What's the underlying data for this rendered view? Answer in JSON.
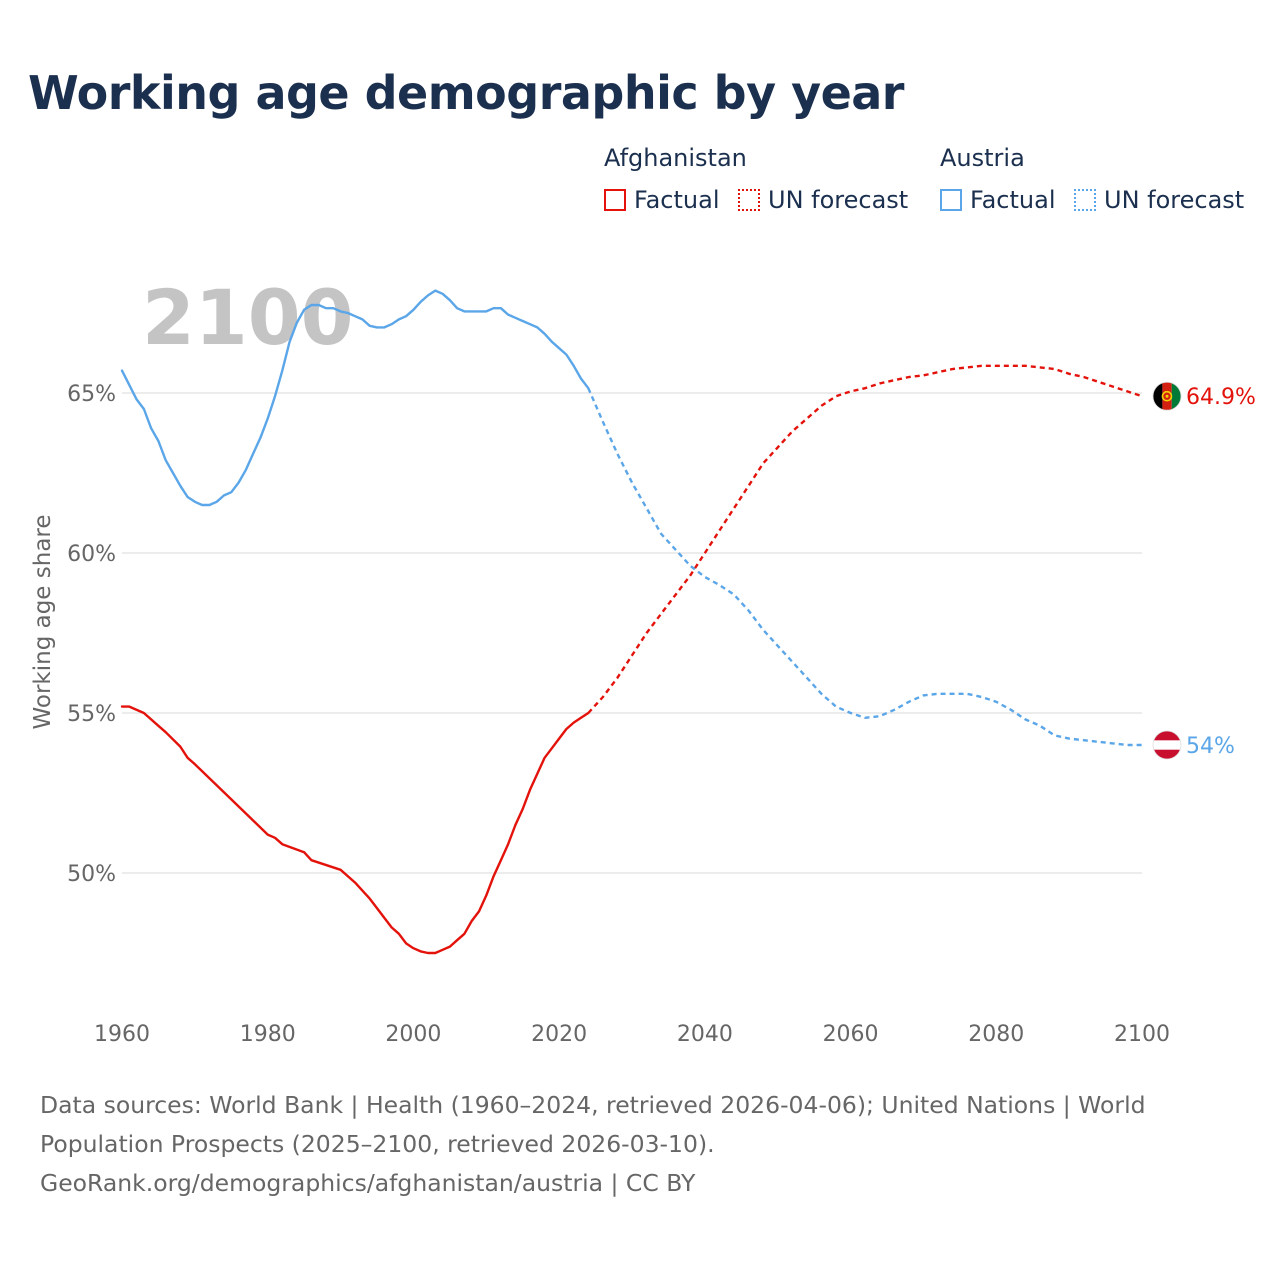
{
  "title": "Working age demographic by year",
  "year_watermark": "2100",
  "legend": {
    "groups": [
      {
        "name": "Afghanistan",
        "color": "#e3120b",
        "factual_label": "Factual",
        "forecast_label": "UN forecast"
      },
      {
        "name": "Austria",
        "color": "#5ba6e8",
        "factual_label": "Factual",
        "forecast_label": "UN forecast"
      }
    ]
  },
  "footer": {
    "line1": "Data sources: World Bank | Health (1960–2024, retrieved 2026-04-06); United Nations | World",
    "line2": "Population Prospects (2025–2100, retrieved 2026-03-10).",
    "line3": "GeoRank.org/demographics/afghanistan/austria | CC BY"
  },
  "chart_data": {
    "type": "line",
    "title": "Working age demographic by year",
    "xlabel": "",
    "ylabel": "Working age share",
    "xlim": [
      1960,
      2100
    ],
    "ylim": [
      46,
      68.5
    ],
    "x_ticks": [
      1960,
      1980,
      2000,
      2020,
      2040,
      2060,
      2080,
      2100
    ],
    "y_ticks": [
      50,
      55,
      60,
      65
    ],
    "y_tick_labels": [
      "50%",
      "55%",
      "60%",
      "65%"
    ],
    "grid": true,
    "forecast_start_year": 2024,
    "series": [
      {
        "name": "Afghanistan",
        "color": "#e3120b",
        "end_label": "64.9%",
        "points": [
          [
            1960,
            55.2
          ],
          [
            1961,
            55.2
          ],
          [
            1963,
            55.0
          ],
          [
            1965,
            54.6
          ],
          [
            1966,
            54.4
          ],
          [
            1968,
            53.95
          ],
          [
            1969,
            53.6
          ],
          [
            1970,
            53.4
          ],
          [
            1975,
            52.3
          ],
          [
            1980,
            51.2
          ],
          [
            1981,
            51.1
          ],
          [
            1982,
            50.9
          ],
          [
            1985,
            50.65
          ],
          [
            1986,
            50.4
          ],
          [
            1990,
            50.1
          ],
          [
            1992,
            49.7
          ],
          [
            1994,
            49.2
          ],
          [
            1997,
            48.3
          ],
          [
            1998,
            48.1
          ],
          [
            1999,
            47.8
          ],
          [
            2000,
            47.65
          ],
          [
            2001,
            47.55
          ],
          [
            2002,
            47.5
          ],
          [
            2003,
            47.5
          ],
          [
            2004,
            47.6
          ],
          [
            2005,
            47.7
          ],
          [
            2006,
            47.9
          ],
          [
            2007,
            48.1
          ],
          [
            2008,
            48.5
          ],
          [
            2009,
            48.8
          ],
          [
            2010,
            49.3
          ],
          [
            2011,
            49.9
          ],
          [
            2012,
            50.4
          ],
          [
            2013,
            50.9
          ],
          [
            2014,
            51.5
          ],
          [
            2015,
            52.0
          ],
          [
            2016,
            52.6
          ],
          [
            2017,
            53.1
          ],
          [
            2018,
            53.6
          ],
          [
            2019,
            53.9
          ],
          [
            2020,
            54.2
          ],
          [
            2021,
            54.5
          ],
          [
            2022,
            54.7
          ],
          [
            2023,
            54.85
          ],
          [
            2024,
            55.0
          ],
          [
            2026,
            55.5
          ],
          [
            2028,
            56.1
          ],
          [
            2030,
            56.8
          ],
          [
            2032,
            57.5
          ],
          [
            2034,
            58.1
          ],
          [
            2036,
            58.7
          ],
          [
            2038,
            59.3
          ],
          [
            2040,
            60.0
          ],
          [
            2042,
            60.7
          ],
          [
            2044,
            61.4
          ],
          [
            2046,
            62.1
          ],
          [
            2048,
            62.8
          ],
          [
            2050,
            63.3
          ],
          [
            2052,
            63.8
          ],
          [
            2054,
            64.2
          ],
          [
            2056,
            64.6
          ],
          [
            2058,
            64.9
          ],
          [
            2060,
            65.05
          ],
          [
            2062,
            65.15
          ],
          [
            2064,
            65.3
          ],
          [
            2066,
            65.4
          ],
          [
            2068,
            65.5
          ],
          [
            2070,
            65.55
          ],
          [
            2072,
            65.65
          ],
          [
            2074,
            65.75
          ],
          [
            2076,
            65.8
          ],
          [
            2078,
            65.85
          ],
          [
            2080,
            65.85
          ],
          [
            2082,
            65.85
          ],
          [
            2084,
            65.85
          ],
          [
            2086,
            65.8
          ],
          [
            2088,
            65.75
          ],
          [
            2090,
            65.6
          ],
          [
            2092,
            65.5
          ],
          [
            2094,
            65.35
          ],
          [
            2096,
            65.2
          ],
          [
            2098,
            65.05
          ],
          [
            2100,
            64.9
          ]
        ]
      },
      {
        "name": "Austria",
        "color": "#5ba6e8",
        "end_label": "54%",
        "points": [
          [
            1960,
            65.7
          ],
          [
            1962,
            64.8
          ],
          [
            1963,
            64.5
          ],
          [
            1964,
            63.9
          ],
          [
            1965,
            63.5
          ],
          [
            1966,
            62.9
          ],
          [
            1967,
            62.5
          ],
          [
            1968,
            62.1
          ],
          [
            1969,
            61.75
          ],
          [
            1970,
            61.6
          ],
          [
            1971,
            61.5
          ],
          [
            1972,
            61.5
          ],
          [
            1973,
            61.6
          ],
          [
            1974,
            61.8
          ],
          [
            1975,
            61.9
          ],
          [
            1976,
            62.2
          ],
          [
            1977,
            62.6
          ],
          [
            1978,
            63.1
          ],
          [
            1979,
            63.6
          ],
          [
            1980,
            64.2
          ],
          [
            1981,
            64.9
          ],
          [
            1982,
            65.7
          ],
          [
            1983,
            66.6
          ],
          [
            1984,
            67.2
          ],
          [
            1985,
            67.6
          ],
          [
            1986,
            67.75
          ],
          [
            1987,
            67.75
          ],
          [
            1988,
            67.65
          ],
          [
            1989,
            67.65
          ],
          [
            1990,
            67.55
          ],
          [
            1991,
            67.5
          ],
          [
            1992,
            67.4
          ],
          [
            1993,
            67.3
          ],
          [
            1994,
            67.1
          ],
          [
            1995,
            67.05
          ],
          [
            1996,
            67.05
          ],
          [
            1997,
            67.15
          ],
          [
            1998,
            67.3
          ],
          [
            1999,
            67.4
          ],
          [
            2000,
            67.6
          ],
          [
            2001,
            67.85
          ],
          [
            2002,
            68.05
          ],
          [
            2003,
            68.2
          ],
          [
            2004,
            68.1
          ],
          [
            2005,
            67.9
          ],
          [
            2006,
            67.65
          ],
          [
            2007,
            67.55
          ],
          [
            2008,
            67.55
          ],
          [
            2009,
            67.55
          ],
          [
            2010,
            67.55
          ],
          [
            2011,
            67.65
          ],
          [
            2012,
            67.65
          ],
          [
            2013,
            67.45
          ],
          [
            2014,
            67.35
          ],
          [
            2015,
            67.25
          ],
          [
            2016,
            67.15
          ],
          [
            2017,
            67.05
          ],
          [
            2018,
            66.85
          ],
          [
            2019,
            66.6
          ],
          [
            2020,
            66.4
          ],
          [
            2021,
            66.2
          ],
          [
            2022,
            65.85
          ],
          [
            2023,
            65.45
          ],
          [
            2024,
            65.15
          ],
          [
            2026,
            64.1
          ],
          [
            2028,
            63.1
          ],
          [
            2030,
            62.2
          ],
          [
            2032,
            61.4
          ],
          [
            2034,
            60.6
          ],
          [
            2036,
            60.1
          ],
          [
            2038,
            59.6
          ],
          [
            2040,
            59.25
          ],
          [
            2042,
            59.0
          ],
          [
            2044,
            58.7
          ],
          [
            2046,
            58.2
          ],
          [
            2048,
            57.6
          ],
          [
            2050,
            57.1
          ],
          [
            2052,
            56.6
          ],
          [
            2054,
            56.1
          ],
          [
            2056,
            55.6
          ],
          [
            2058,
            55.2
          ],
          [
            2060,
            55.0
          ],
          [
            2062,
            54.85
          ],
          [
            2064,
            54.9
          ],
          [
            2066,
            55.1
          ],
          [
            2068,
            55.35
          ],
          [
            2070,
            55.55
          ],
          [
            2072,
            55.6
          ],
          [
            2074,
            55.6
          ],
          [
            2076,
            55.6
          ],
          [
            2078,
            55.5
          ],
          [
            2080,
            55.35
          ],
          [
            2082,
            55.1
          ],
          [
            2084,
            54.8
          ],
          [
            2086,
            54.6
          ],
          [
            2088,
            54.3
          ],
          [
            2090,
            54.2
          ],
          [
            2092,
            54.15
          ],
          [
            2094,
            54.1
          ],
          [
            2096,
            54.05
          ],
          [
            2098,
            54.0
          ],
          [
            2100,
            54.0
          ]
        ]
      }
    ]
  }
}
